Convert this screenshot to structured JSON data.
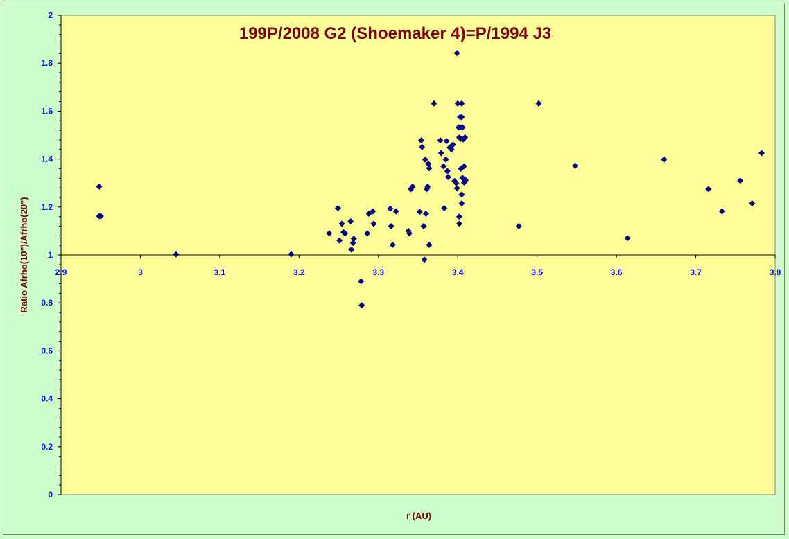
{
  "chart_data": {
    "type": "scatter",
    "title": "199P/2008 G2 (Shoemaker 4)=P/1994 J3",
    "xlabel": "r (AU)",
    "ylabel": "Ratio Afrho(10\")/Afrho(20\")",
    "xlim": [
      2.9,
      3.8
    ],
    "ylim": [
      0,
      2
    ],
    "x_ticks": [
      "2.9",
      "3",
      "3.1",
      "3.2",
      "3.3",
      "3.4",
      "3.5",
      "3.6",
      "3.7",
      "3.8"
    ],
    "y_ticks": [
      "0",
      "0.2",
      "0.4",
      "0.6",
      "0.8",
      "1",
      "1.2",
      "1.4",
      "1.6",
      "1.8",
      "2"
    ],
    "grid": false,
    "legend": "none",
    "colors": {
      "plot_background": "#ffff99",
      "chart_background": "#ccffcc",
      "marker": "#000080",
      "title": "#800000",
      "tick_labels": "#0000ff"
    },
    "series": [
      {
        "marker": "diamond",
        "points": [
          [
            2.948,
            1.285
          ],
          [
            2.948,
            1.162
          ],
          [
            2.95,
            1.162
          ],
          [
            3.045,
            1.002
          ],
          [
            3.19,
            1.003
          ],
          [
            3.238,
            1.09
          ],
          [
            3.249,
            1.195
          ],
          [
            3.251,
            1.06
          ],
          [
            3.254,
            1.13
          ],
          [
            3.256,
            1.095
          ],
          [
            3.258,
            1.09
          ],
          [
            3.265,
            1.14
          ],
          [
            3.266,
            1.022
          ],
          [
            3.268,
            1.05
          ],
          [
            3.269,
            1.068
          ],
          [
            3.278,
            0.89
          ],
          [
            3.279,
            0.79
          ],
          [
            3.286,
            1.09
          ],
          [
            3.288,
            1.172
          ],
          [
            3.293,
            1.182
          ],
          [
            3.294,
            1.13
          ],
          [
            3.315,
            1.193
          ],
          [
            3.316,
            1.12
          ],
          [
            3.318,
            1.042
          ],
          [
            3.322,
            1.182
          ],
          [
            3.338,
            1.1
          ],
          [
            3.339,
            1.09
          ],
          [
            3.341,
            1.275
          ],
          [
            3.343,
            1.285
          ],
          [
            3.352,
            1.18
          ],
          [
            3.354,
            1.478
          ],
          [
            3.355,
            1.45
          ],
          [
            3.357,
            1.12
          ],
          [
            3.358,
            0.98
          ],
          [
            3.359,
            1.398
          ],
          [
            3.36,
            1.172
          ],
          [
            3.361,
            1.275
          ],
          [
            3.362,
            1.285
          ],
          [
            3.363,
            1.38
          ],
          [
            3.364,
            1.362
          ],
          [
            3.364,
            1.042
          ],
          [
            3.37,
            1.632
          ],
          [
            3.378,
            1.478
          ],
          [
            3.379,
            1.425
          ],
          [
            3.382,
            1.37
          ],
          [
            3.383,
            1.195
          ],
          [
            3.385,
            1.398
          ],
          [
            3.386,
            1.475
          ],
          [
            3.387,
            1.35
          ],
          [
            3.388,
            1.325
          ],
          [
            3.39,
            1.448
          ],
          [
            3.392,
            1.44
          ],
          [
            3.394,
            1.46
          ],
          [
            3.396,
            1.308
          ],
          [
            3.398,
            1.3
          ],
          [
            3.399,
            1.278
          ],
          [
            3.399,
            1.842
          ],
          [
            3.4,
            1.632
          ],
          [
            3.401,
            1.532
          ],
          [
            3.402,
            1.49
          ],
          [
            3.402,
            1.16
          ],
          [
            3.402,
            1.13
          ],
          [
            3.403,
            1.575
          ],
          [
            3.403,
            1.532
          ],
          [
            3.404,
            1.485
          ],
          [
            3.404,
            1.36
          ],
          [
            3.405,
            1.632
          ],
          [
            3.405,
            1.575
          ],
          [
            3.405,
            1.252
          ],
          [
            3.405,
            1.215
          ],
          [
            3.406,
            1.532
          ],
          [
            3.406,
            1.322
          ],
          [
            3.407,
            1.482
          ],
          [
            3.408,
            1.37
          ],
          [
            3.408,
            1.302
          ],
          [
            3.409,
            1.49
          ],
          [
            3.41,
            1.312
          ],
          [
            3.477,
            1.12
          ],
          [
            3.502,
            1.632
          ],
          [
            3.548,
            1.372
          ],
          [
            3.614,
            1.07
          ],
          [
            3.66,
            1.398
          ],
          [
            3.716,
            1.275
          ],
          [
            3.733,
            1.182
          ],
          [
            3.756,
            1.31
          ],
          [
            3.771,
            1.215
          ],
          [
            3.783,
            1.425
          ]
        ]
      }
    ]
  }
}
